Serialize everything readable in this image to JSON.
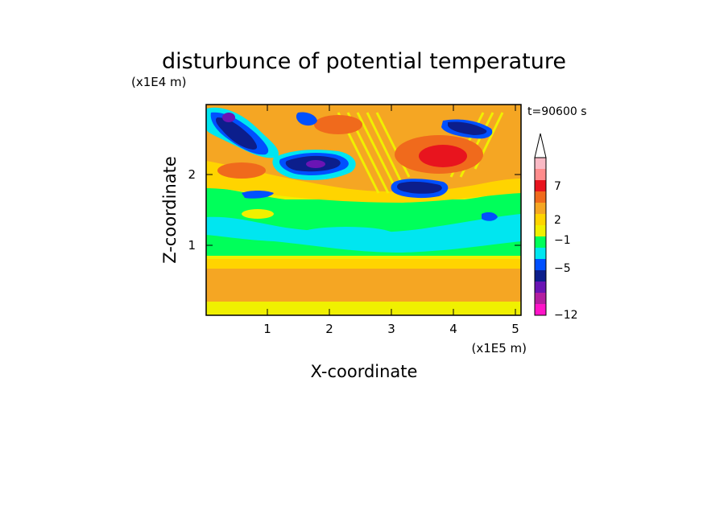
{
  "chart_data": {
    "type": "heatmap",
    "title": "disturbunce of potential temperature",
    "time_label": "t=90600 s",
    "xlabel": "X-coordinate",
    "ylabel": "Z-coordinate",
    "x_unit": "(x1E5 m)",
    "y_unit": "(x1E4 m)",
    "xlim": [
      0,
      5.15
    ],
    "ylim": [
      0,
      2.98
    ],
    "xticks": [
      "1",
      "2",
      "3",
      "4",
      "5"
    ],
    "yticks": [
      "1",
      "2"
    ],
    "grid": false,
    "colorbar": {
      "labels": [
        "7",
        "2",
        "−1",
        "−5",
        "−12"
      ],
      "colors": [
        "#f9b9c4",
        "#ff8c8c",
        "#e8141e",
        "#f06a1c",
        "#f5a623",
        "#ffd400",
        "#f0f000",
        "#00ff5a",
        "#00e6f0",
        "#0050ff",
        "#0c1e8c",
        "#6a14b4",
        "#b41ea0",
        "#ff14c8"
      ]
    },
    "bands": [
      {
        "z_range": [
          0.0,
          0.2
        ],
        "dominant": "yellow"
      },
      {
        "z_range": [
          0.2,
          0.6
        ],
        "dominant": "orange"
      },
      {
        "z_range": [
          0.6,
          0.9
        ],
        "dominant": "yellow"
      },
      {
        "z_range": [
          0.9,
          1.4
        ],
        "dominant": "green/cyan"
      },
      {
        "z_range": [
          1.4,
          1.8
        ],
        "dominant": "green"
      },
      {
        "z_range": [
          1.8,
          2.4
        ],
        "dominant": "orange / dark blue"
      },
      {
        "z_range": [
          2.4,
          2.98
        ],
        "dominant": "orange / red / dark blue"
      }
    ]
  }
}
